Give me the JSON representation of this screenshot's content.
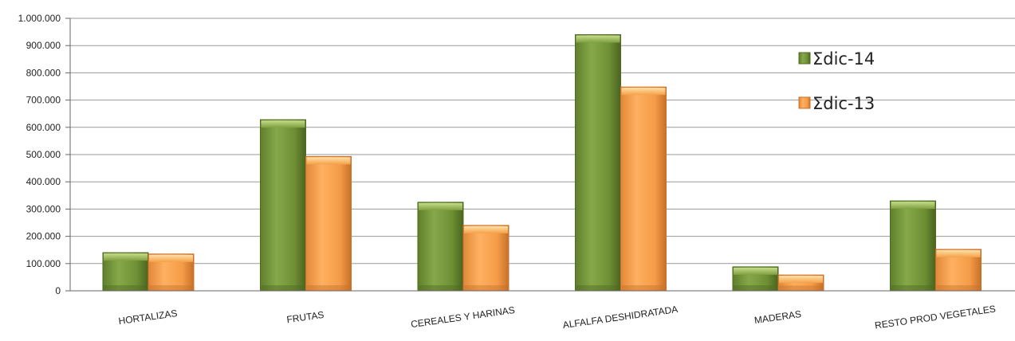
{
  "chart_data": {
    "type": "bar",
    "categories": [
      "HORTALIZAS",
      "FRUTAS",
      "CEREALES Y HARINAS",
      "ALFALFA DESHIDRATADA",
      "MADERAS",
      "RESTO PROD VEGETALES"
    ],
    "series": [
      {
        "name": "Σdic-14",
        "values": [
          140000,
          628000,
          325000,
          940000,
          88000,
          330000
        ]
      },
      {
        "name": "Σdic-13",
        "values": [
          135000,
          493000,
          240000,
          748000,
          58000,
          152000
        ]
      }
    ],
    "ylim": [
      0,
      1000000
    ],
    "yticks": [
      0,
      100000,
      200000,
      300000,
      400000,
      500000,
      600000,
      700000,
      800000,
      900000,
      1000000
    ],
    "ytick_labels": [
      "0",
      "100.000",
      "200.000",
      "300.000",
      "400.000",
      "500.000",
      "600.000",
      "700.000",
      "800.000",
      "900.000",
      "1.000.000"
    ],
    "grid": true,
    "legend_position": "right",
    "colors": {
      "series_0": "#7a9a3c",
      "series_0_dark": "#4f6a22",
      "series_0_light": "#a9c466",
      "series_1": "#f7a04a",
      "series_1_dark": "#c9702a",
      "series_1_light": "#ffd08a",
      "grid": "#9a9a9a"
    }
  }
}
